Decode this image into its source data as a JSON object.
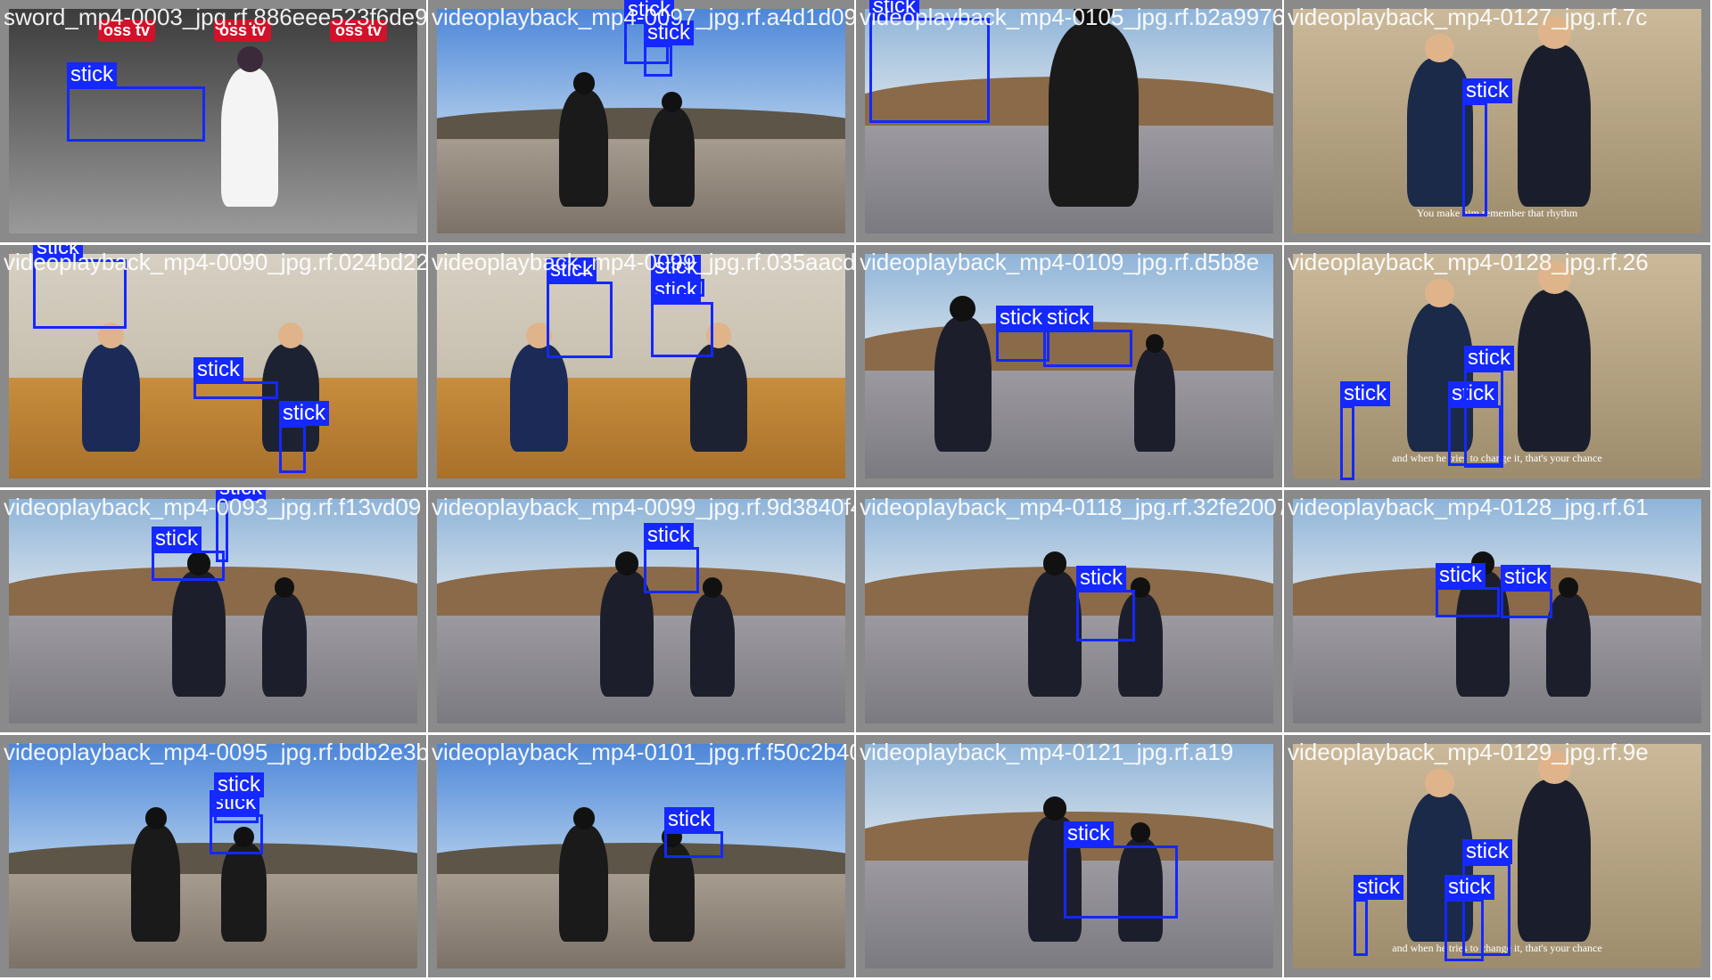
{
  "class_label": "stick",
  "colors": {
    "box": "#1428ff",
    "tile_border": "#8a8a8a"
  },
  "tiles": [
    {
      "filename": "sword_mp4-0003_jpg.rf.886eee523f6de9b46",
      "scene": "studio",
      "logo_text": "oss tv",
      "caption": "",
      "boxes": [
        {
          "label": "stick"
        }
      ]
    },
    {
      "filename": "videoplayback_mp4-0097_jpg.rf.a4d1d09adf5",
      "scene": "plaza-fisheye",
      "caption": "",
      "boxes": [
        {
          "label": "stick"
        },
        {
          "label": "stick"
        }
      ]
    },
    {
      "filename": "videoplayback_mp4-0105_jpg.rf.b2a9976329",
      "scene": "park",
      "caption": "",
      "boxes": [
        {
          "label": "stick"
        }
      ]
    },
    {
      "filename": "videoplayback_mp4-0127_jpg.rf.7c",
      "scene": "dojo",
      "caption": "You make him remember that rhythm",
      "boxes": [
        {
          "label": "stick"
        }
      ]
    },
    {
      "filename": "videoplayback_mp4-0090_jpg.rf.024bd22595a",
      "scene": "dojo-wood",
      "caption": "",
      "boxes": [
        {
          "label": "stick"
        },
        {
          "label": "stick"
        },
        {
          "label": "stick"
        }
      ]
    },
    {
      "filename": "videoplayback_mp4-0099_jpg.rf.035aacd2",
      "scene": "dojo-wood",
      "caption": "",
      "boxes": [
        {
          "label": "stick"
        },
        {
          "label": "stick"
        },
        {
          "label": "stick"
        }
      ]
    },
    {
      "filename": "videoplayback_mp4-0109_jpg.rf.d5b8e",
      "scene": "plaza",
      "caption": "",
      "boxes": [
        {
          "label": "stick"
        },
        {
          "label": "stick"
        }
      ]
    },
    {
      "filename": "videoplayback_mp4-0128_jpg.rf.26",
      "scene": "dojo",
      "caption": "and when he tries to change it, that's your chance",
      "boxes": [
        {
          "label": "stick"
        },
        {
          "label": "stick"
        },
        {
          "label": "stick"
        }
      ]
    },
    {
      "filename": "videoplayback_mp4-0093_jpg.rf.f13vd09",
      "scene": "park-plaza",
      "caption": "",
      "boxes": [
        {
          "label": "stick"
        },
        {
          "label": "stick"
        }
      ]
    },
    {
      "filename": "videoplayback_mp4-0099_jpg.rf.9d3840f4",
      "scene": "park-plaza",
      "caption": "",
      "boxes": [
        {
          "label": "stick"
        }
      ]
    },
    {
      "filename": "videoplayback_mp4-0118_jpg.rf.32fe2007",
      "scene": "park-plaza",
      "caption": "",
      "boxes": [
        {
          "label": "stick"
        }
      ]
    },
    {
      "filename": "videoplayback_mp4-0128_jpg.rf.61",
      "scene": "park-plaza",
      "caption": "",
      "boxes": [
        {
          "label": "stick"
        },
        {
          "label": "stick"
        }
      ]
    },
    {
      "filename": "videoplayback_mp4-0095_jpg.rf.bdb2e3b",
      "scene": "plaza-fisheye",
      "caption": "",
      "boxes": [
        {
          "label": "stick"
        },
        {
          "label": "stick"
        }
      ]
    },
    {
      "filename": "videoplayback_mp4-0101_jpg.rf.f50c2b4065",
      "scene": "plaza-fisheye",
      "caption": "",
      "boxes": [
        {
          "label": "stick"
        }
      ]
    },
    {
      "filename": "videoplayback_mp4-0121_jpg.rf.a19",
      "scene": "park-plaza",
      "caption": "",
      "boxes": [
        {
          "label": "stick"
        }
      ]
    },
    {
      "filename": "videoplayback_mp4-0129_jpg.rf.9e",
      "scene": "dojo",
      "caption": "and when he tries to change it, that's your chance",
      "boxes": [
        {
          "label": "stick"
        },
        {
          "label": "stick"
        },
        {
          "label": "stick"
        }
      ]
    }
  ]
}
